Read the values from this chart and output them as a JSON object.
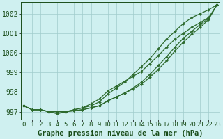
{
  "title": "Graphe pression niveau de la mer (hPa)",
  "hours": [
    0,
    1,
    2,
    3,
    4,
    5,
    6,
    7,
    8,
    9,
    10,
    11,
    12,
    13,
    14,
    15,
    16,
    17,
    18,
    19,
    20,
    21,
    22,
    23
  ],
  "series": [
    [
      997.3,
      997.1,
      997.1,
      997.0,
      996.9,
      997.0,
      997.1,
      997.2,
      997.3,
      997.5,
      997.9,
      998.2,
      998.5,
      998.9,
      999.3,
      999.7,
      1000.2,
      1000.7,
      1001.1,
      1001.5,
      1001.8,
      1002.0,
      1002.2,
      1002.45
    ],
    [
      997.3,
      997.1,
      997.1,
      997.0,
      996.9,
      997.0,
      997.1,
      997.2,
      997.4,
      997.65,
      998.05,
      998.3,
      998.55,
      998.8,
      999.05,
      999.45,
      999.85,
      1000.3,
      1000.7,
      1001.0,
      1001.3,
      1001.55,
      1001.8,
      1002.45
    ],
    [
      997.3,
      997.1,
      997.1,
      997.0,
      997.0,
      997.0,
      997.05,
      997.1,
      997.2,
      997.3,
      997.55,
      997.75,
      997.95,
      998.15,
      998.4,
      998.75,
      999.15,
      999.6,
      1000.1,
      1000.55,
      1000.95,
      1001.3,
      1001.7,
      1002.45
    ],
    [
      997.3,
      997.1,
      997.1,
      997.0,
      997.0,
      997.0,
      997.05,
      997.1,
      997.2,
      997.3,
      997.55,
      997.75,
      997.95,
      998.2,
      998.5,
      998.9,
      999.35,
      999.8,
      1000.3,
      1000.75,
      1001.1,
      1001.45,
      1001.75,
      1002.45
    ]
  ],
  "line_color": "#2d6a2d",
  "marker_color": "#2d6a2d",
  "bg_color": "#cff0f0",
  "grid_color": "#a0cccc",
  "ylim": [
    996.6,
    1002.6
  ],
  "yticks": [
    997,
    998,
    999,
    1000,
    1001,
    1002
  ],
  "title_color": "#1a4d1a",
  "title_fontsize": 7.5,
  "tick_fontsize": 6.5
}
